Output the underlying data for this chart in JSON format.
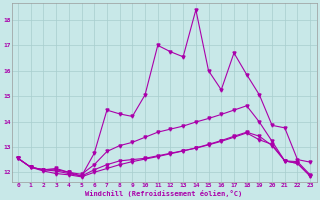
{
  "xlabel": "Windchill (Refroidissement éolien,°C)",
  "bg_color": "#c8e8e8",
  "grid_color": "#a8cece",
  "line_color": "#aa00aa",
  "xlim_min": -0.5,
  "xlim_max": 23.5,
  "ylim_min": 11.6,
  "ylim_max": 18.65,
  "xticks": [
    0,
    1,
    2,
    3,
    4,
    5,
    6,
    7,
    8,
    9,
    10,
    11,
    12,
    13,
    14,
    15,
    16,
    17,
    18,
    19,
    20,
    21,
    22,
    23
  ],
  "yticks": [
    12,
    13,
    14,
    15,
    16,
    17,
    18
  ],
  "curve1_x": [
    0,
    1,
    2,
    3,
    4,
    5,
    6,
    7,
    8,
    9,
    10,
    11,
    12,
    13,
    14,
    15,
    16,
    17,
    18,
    19,
    20,
    21,
    22,
    23
  ],
  "curve1_y": [
    12.55,
    12.2,
    12.1,
    12.15,
    12.0,
    11.85,
    12.75,
    14.45,
    14.3,
    14.2,
    15.05,
    17.0,
    16.75,
    16.55,
    18.4,
    16.0,
    15.25,
    16.7,
    15.85,
    15.05,
    13.85,
    13.75,
    12.5,
    12.4
  ],
  "curve2_x": [
    0,
    1,
    2,
    3,
    4,
    5,
    6,
    7,
    8,
    9,
    10,
    11,
    12,
    13,
    14,
    15,
    16,
    17,
    18,
    19,
    20,
    21,
    22,
    23
  ],
  "curve2_y": [
    12.55,
    12.2,
    12.1,
    12.05,
    11.95,
    11.85,
    12.1,
    12.3,
    12.45,
    12.5,
    12.55,
    12.65,
    12.75,
    12.85,
    12.95,
    13.08,
    13.22,
    13.38,
    13.55,
    13.28,
    13.1,
    12.45,
    12.35,
    11.85
  ],
  "curve3_x": [
    0,
    1,
    2,
    3,
    4,
    5,
    6,
    7,
    8,
    9,
    10,
    11,
    12,
    13,
    14,
    15,
    16,
    17,
    18,
    19,
    20,
    21,
    22,
    23
  ],
  "curve3_y": [
    12.55,
    12.2,
    12.05,
    11.95,
    11.9,
    11.82,
    12.0,
    12.15,
    12.3,
    12.42,
    12.52,
    12.62,
    12.73,
    12.84,
    12.96,
    13.1,
    13.25,
    13.42,
    13.58,
    13.42,
    13.05,
    12.45,
    12.35,
    11.85
  ],
  "curve4_x": [
    0,
    1,
    2,
    3,
    4,
    5,
    6,
    7,
    8,
    9,
    10,
    11,
    12,
    13,
    14,
    15,
    16,
    17,
    18,
    19,
    20,
    21,
    22,
    23
  ],
  "curve4_y": [
    12.55,
    12.2,
    12.1,
    12.1,
    12.0,
    11.92,
    12.3,
    12.82,
    13.05,
    13.18,
    13.38,
    13.58,
    13.7,
    13.82,
    13.98,
    14.12,
    14.28,
    14.45,
    14.62,
    13.98,
    13.22,
    12.45,
    12.42,
    11.9
  ]
}
